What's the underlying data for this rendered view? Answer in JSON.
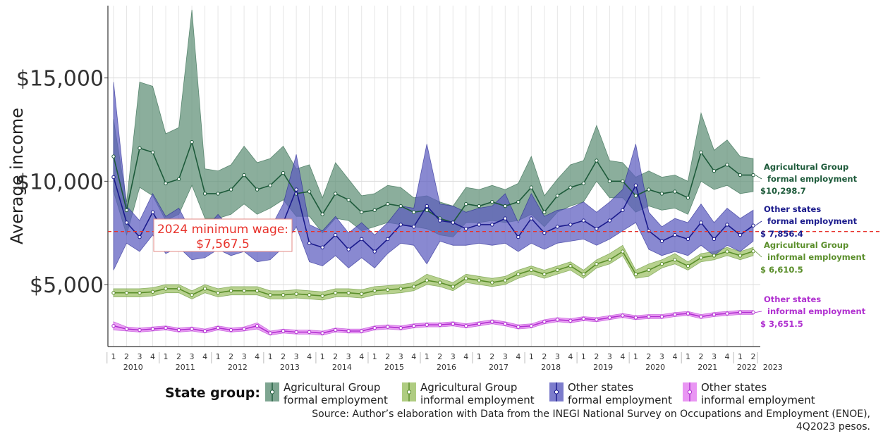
{
  "chart_data": {
    "type": "line",
    "ylabel": "Average income",
    "y_ticks": [
      "$5,000",
      "$10,000",
      "$15,000"
    ],
    "y_tick_values": [
      5000,
      10000,
      15000
    ],
    "ylim": [
      2000,
      18500
    ],
    "years": [
      "2010",
      "2011",
      "2012",
      "2013",
      "2014",
      "2015",
      "2016",
      "2017",
      "2018",
      "2019",
      "2020",
      "2021",
      "2022",
      "2023"
    ],
    "quarter_labels": [
      "1",
      "2",
      "3",
      "4"
    ],
    "grid": true,
    "reference_line": {
      "value": 7567.5,
      "label_line1": "2024 minimum wage:",
      "label_line2": "$7,567.5",
      "color": "#e8322b"
    },
    "legend_title": "State group:",
    "legend_position": "bottom",
    "series": [
      {
        "name_line1": "Agricultural Group",
        "name_line2": "formal employment",
        "end_label_line1": "Agricultural Group",
        "end_label_line2": "formal employment",
        "end_value": "$10,298.7",
        "line_color": "#1d5a3a",
        "fill_color": "#5e8f76",
        "values": [
          11200,
          8600,
          11600,
          11400,
          9900,
          10100,
          11900,
          9400,
          9400,
          9600,
          10300,
          9600,
          9800,
          10400,
          9400,
          9500,
          8400,
          9400,
          9100,
          8500,
          8600,
          8900,
          8800,
          8500,
          8600,
          8200,
          8000,
          8900,
          8800,
          9000,
          8800,
          9000,
          9700,
          8500,
          9300,
          9700,
          9900,
          11000,
          10000,
          10000,
          9300,
          9600,
          9400,
          9500,
          9200,
          11400,
          10500,
          10800,
          10300,
          10298.7
        ],
        "lower": [
          9500,
          7400,
          9700,
          9300,
          8100,
          8400,
          9800,
          8200,
          8200,
          8400,
          8900,
          8400,
          8700,
          9100,
          8300,
          8300,
          7500,
          8200,
          8100,
          7600,
          7800,
          8000,
          7900,
          7800,
          7700,
          7400,
          7300,
          8000,
          8000,
          8100,
          8000,
          8100,
          8400,
          7800,
          8500,
          8800,
          9000,
          10000,
          9200,
          9200,
          8500,
          8800,
          8600,
          8700,
          8400,
          10000,
          9600,
          9800,
          9400,
          9500
        ],
        "upper": [
          13000,
          9000,
          14800,
          14600,
          12300,
          12600,
          18300,
          10600,
          10500,
          10800,
          11700,
          10900,
          11100,
          11700,
          10600,
          10800,
          9200,
          10900,
          10100,
          9300,
          9400,
          9800,
          9700,
          9200,
          9300,
          9000,
          8800,
          9700,
          9600,
          9800,
          9600,
          9900,
          11200,
          9300,
          10100,
          10800,
          11000,
          12700,
          11000,
          10900,
          10200,
          10500,
          10200,
          10300,
          10000,
          13300,
          11500,
          12000,
          11200,
          11100
        ]
      },
      {
        "name_line1": "Agricultural Group",
        "name_line2": "informal employment",
        "end_label_line1": "Agricultural Group",
        "end_label_line2": "informal employment",
        "end_value": "$ 6,610.5",
        "line_color": "#5a8e2a",
        "fill_color": "#9bbf62",
        "values": [
          4600,
          4600,
          4600,
          4650,
          4800,
          4800,
          4500,
          4800,
          4600,
          4700,
          4700,
          4700,
          4500,
          4500,
          4550,
          4500,
          4450,
          4600,
          4600,
          4550,
          4700,
          4750,
          4800,
          4900,
          5200,
          5100,
          4900,
          5300,
          5200,
          5100,
          5200,
          5500,
          5700,
          5500,
          5700,
          5900,
          5500,
          6000,
          6200,
          6600,
          5500,
          5700,
          6000,
          6200,
          5900,
          6300,
          6400,
          6600,
          6400,
          6610.5
        ],
        "lower": [
          4400,
          4400,
          4400,
          4450,
          4600,
          4600,
          4300,
          4600,
          4400,
          4500,
          4500,
          4500,
          4300,
          4300,
          4350,
          4300,
          4250,
          4400,
          4400,
          4350,
          4500,
          4550,
          4600,
          4700,
          5000,
          4900,
          4700,
          5100,
          5000,
          4900,
          5000,
          5300,
          5500,
          5300,
          5500,
          5700,
          5300,
          5800,
          6000,
          6400,
          5300,
          5400,
          5800,
          6000,
          5700,
          6100,
          6200,
          6400,
          6200,
          6400
        ],
        "upper": [
          4800,
          4800,
          4800,
          4850,
          5000,
          5000,
          4700,
          5000,
          4800,
          4900,
          4900,
          4900,
          4700,
          4700,
          4750,
          4700,
          4650,
          4800,
          4800,
          4750,
          4900,
          4950,
          5000,
          5100,
          5500,
          5300,
          5100,
          5500,
          5400,
          5300,
          5400,
          5700,
          5900,
          5700,
          5900,
          6100,
          5700,
          6200,
          6500,
          6900,
          5700,
          6000,
          6200,
          6500,
          6100,
          6500,
          6600,
          6800,
          6600,
          6800
        ]
      },
      {
        "name_line1": "Other states",
        "name_line2": "formal employment",
        "end_label_line1": "Other states",
        "end_label_line2": "formal employment",
        "end_value": "$ 7,856.4",
        "line_color": "#1a1a8c",
        "fill_color": "#5b5bbf",
        "values": [
          10200,
          8000,
          7300,
          8500,
          7400,
          7800,
          6800,
          7000,
          7600,
          7000,
          7300,
          6800,
          7000,
          8000,
          9600,
          7000,
          6800,
          7400,
          6700,
          7200,
          6600,
          7200,
          7900,
          7800,
          8800,
          8100,
          8000,
          7700,
          7900,
          7900,
          8200,
          7300,
          8200,
          7500,
          7800,
          7900,
          8100,
          7700,
          8100,
          8600,
          9800,
          7600,
          7100,
          7400,
          7200,
          8000,
          7200,
          7900,
          7400,
          7856.4
        ],
        "lower": [
          5700,
          7000,
          6600,
          7400,
          6500,
          6800,
          6200,
          6300,
          6700,
          6400,
          6600,
          6100,
          6200,
          6800,
          7800,
          6100,
          5900,
          6400,
          5800,
          6300,
          5800,
          6500,
          7000,
          6900,
          6000,
          7100,
          6900,
          6900,
          7000,
          6900,
          7000,
          6600,
          7000,
          6700,
          7000,
          7100,
          7200,
          6900,
          7200,
          7600,
          8000,
          6700,
          6400,
          6600,
          6400,
          6900,
          6400,
          6900,
          6600,
          7100
        ],
        "upper": [
          14800,
          8800,
          8100,
          9400,
          8300,
          8700,
          7500,
          7700,
          8400,
          7700,
          8000,
          7500,
          7700,
          8900,
          11300,
          7900,
          7600,
          8300,
          7500,
          8000,
          7400,
          8000,
          8800,
          8700,
          11800,
          8900,
          8800,
          8500,
          8700,
          8800,
          9400,
          8000,
          9400,
          8300,
          8600,
          8700,
          9000,
          8500,
          9000,
          9600,
          11800,
          8500,
          7800,
          8200,
          8000,
          8900,
          8000,
          8700,
          8200,
          8600
        ]
      },
      {
        "name_line1": "Other states",
        "name_line2": "informal employment",
        "end_label_line1": "Other states",
        "end_label_line2": "informal employment",
        "end_value": "$ 3,651.5",
        "line_color": "#b030d0",
        "fill_color": "#e37cf0",
        "values": [
          3000,
          2850,
          2800,
          2850,
          2900,
          2800,
          2850,
          2750,
          2900,
          2800,
          2850,
          3000,
          2650,
          2750,
          2700,
          2700,
          2650,
          2800,
          2750,
          2750,
          2900,
          2950,
          2900,
          3000,
          3050,
          3050,
          3100,
          3000,
          3100,
          3200,
          3100,
          2950,
          3000,
          3200,
          3300,
          3250,
          3350,
          3300,
          3400,
          3500,
          3400,
          3450,
          3450,
          3550,
          3600,
          3450,
          3550,
          3600,
          3650,
          3651.5
        ],
        "lower": [
          2800,
          2750,
          2700,
          2750,
          2800,
          2700,
          2750,
          2650,
          2800,
          2700,
          2750,
          2850,
          2550,
          2650,
          2600,
          2600,
          2550,
          2700,
          2650,
          2650,
          2800,
          2850,
          2800,
          2900,
          2950,
          2950,
          3000,
          2900,
          3000,
          3100,
          3000,
          2850,
          2900,
          3100,
          3200,
          3150,
          3250,
          3200,
          3300,
          3400,
          3300,
          3350,
          3350,
          3450,
          3500,
          3350,
          3450,
          3500,
          3550,
          3550
        ],
        "upper": [
          3200,
          2950,
          2900,
          2950,
          3000,
          2900,
          2950,
          2850,
          3000,
          2900,
          2950,
          3150,
          2750,
          2850,
          2800,
          2800,
          2750,
          2900,
          2850,
          2850,
          3000,
          3050,
          3000,
          3100,
          3150,
          3150,
          3200,
          3100,
          3200,
          3300,
          3200,
          3050,
          3100,
          3300,
          3400,
          3350,
          3450,
          3400,
          3500,
          3600,
          3500,
          3550,
          3550,
          3650,
          3700,
          3550,
          3650,
          3700,
          3750,
          3750
        ]
      }
    ]
  },
  "source_line1": "Source:  Author’s elaboration with Data from the INEGI National Survey on Occupations and Employment (ENOE),",
  "source_line2": "4Q2023 pesos."
}
